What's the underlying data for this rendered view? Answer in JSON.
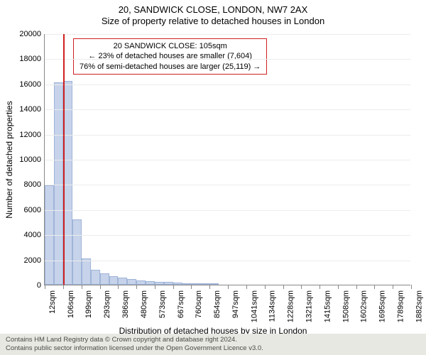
{
  "title": {
    "line1": "20, SANDWICK CLOSE, LONDON, NW7 2AX",
    "line2": "Size of property relative to detached houses in London"
  },
  "chart": {
    "type": "histogram",
    "background_color": "#ffffff",
    "grid_color": "#ececec",
    "axis_color": "#888888",
    "bar_fill": "#c6d3ea",
    "bar_border": "#9fb4d8",
    "marker_color": "#d02020",
    "marker_value_sqm": 105,
    "x_domain_sqm": [
      12,
      1882
    ],
    "ylim": [
      0,
      20000
    ],
    "ytick_step": 2000,
    "y_ticks": [
      0,
      2000,
      4000,
      6000,
      8000,
      10000,
      12000,
      14000,
      16000,
      18000,
      20000
    ],
    "x_tick_labels": [
      "12sqm",
      "106sqm",
      "199sqm",
      "293sqm",
      "386sqm",
      "480sqm",
      "573sqm",
      "667sqm",
      "760sqm",
      "854sqm",
      "947sqm",
      "1041sqm",
      "1134sqm",
      "1228sqm",
      "1321sqm",
      "1415sqm",
      "1508sqm",
      "1602sqm",
      "1695sqm",
      "1789sqm",
      "1882sqm"
    ],
    "x_tick_values": [
      12,
      106,
      199,
      293,
      386,
      480,
      573,
      667,
      760,
      854,
      947,
      1041,
      1134,
      1228,
      1321,
      1415,
      1508,
      1602,
      1695,
      1789,
      1882
    ],
    "bars": [
      {
        "x0": 12,
        "x1": 59,
        "count": 7900
      },
      {
        "x0": 59,
        "x1": 106,
        "count": 16100
      },
      {
        "x0": 106,
        "x1": 153,
        "count": 16200
      },
      {
        "x0": 153,
        "x1": 199,
        "count": 5200
      },
      {
        "x0": 199,
        "x1": 246,
        "count": 2100
      },
      {
        "x0": 246,
        "x1": 293,
        "count": 1200
      },
      {
        "x0": 293,
        "x1": 340,
        "count": 900
      },
      {
        "x0": 340,
        "x1": 386,
        "count": 700
      },
      {
        "x0": 386,
        "x1": 433,
        "count": 550
      },
      {
        "x0": 433,
        "x1": 480,
        "count": 450
      },
      {
        "x0": 480,
        "x1": 527,
        "count": 350
      },
      {
        "x0": 527,
        "x1": 573,
        "count": 300
      },
      {
        "x0": 573,
        "x1": 620,
        "count": 250
      },
      {
        "x0": 620,
        "x1": 667,
        "count": 200
      },
      {
        "x0": 667,
        "x1": 714,
        "count": 160
      },
      {
        "x0": 714,
        "x1": 760,
        "count": 130
      },
      {
        "x0": 760,
        "x1": 807,
        "count": 100
      },
      {
        "x0": 807,
        "x1": 854,
        "count": 80
      },
      {
        "x0": 854,
        "x1": 900,
        "count": 60
      }
    ],
    "x_axis_title": "Distribution of detached houses by size in London",
    "y_axis_title": "Number of detached properties",
    "label_fontsize": 12,
    "tick_fontsize": 11
  },
  "annotation": {
    "line1": "20 SANDWICK CLOSE: 105sqm",
    "line2": "← 23% of detached houses are smaller (7,604)",
    "line3": "76% of semi-detached houses are larger (25,119) →",
    "box_border_color": "#d02020"
  },
  "footer": {
    "line1": "Contains HM Land Registry data © Crown copyright and database right 2024.",
    "line2": "Contains public sector information licensed under the Open Government Licence v3.0."
  }
}
